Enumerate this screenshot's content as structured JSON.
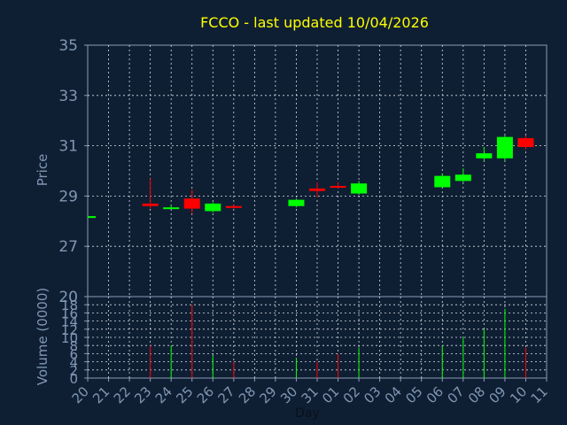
{
  "chart_data": {
    "type": "candlestick",
    "title": "FCCO - last updated 10/04/2026",
    "xlabel": "Day",
    "price_axis": {
      "label": "Price",
      "ylim": [
        25,
        35
      ],
      "ticks": [
        "35",
        "33",
        "31",
        "29",
        "27"
      ],
      "tick_values": [
        35,
        33,
        31,
        29,
        27
      ]
    },
    "volume_axis": {
      "label": "Volume (0000)",
      "ylim": [
        0,
        20
      ],
      "ticks": [
        "20",
        "18",
        "16",
        "14",
        "12",
        "10",
        "8",
        "6",
        "4",
        "2",
        "0"
      ],
      "tick_values": [
        20,
        18,
        16,
        14,
        12,
        10,
        8,
        6,
        4,
        2,
        0
      ]
    },
    "x_ticks": [
      "20",
      "21",
      "22",
      "23",
      "24",
      "25",
      "26",
      "27",
      "28",
      "29",
      "30",
      "31",
      "01",
      "02",
      "03",
      "04",
      "05",
      "06",
      "07",
      "08",
      "09",
      "10",
      "11"
    ],
    "grid": true,
    "colors": {
      "background": "#0f1f33",
      "plot_border": "#8a9bb5",
      "grid": "#d8dde8",
      "title": "#ffff00",
      "axis_text": "#7f97b3",
      "up": "#00ff00",
      "down": "#ff0000"
    },
    "candles": [
      {
        "day": "20",
        "open": 28.2,
        "high": 28.2,
        "low": 28.2,
        "close": 28.2,
        "volume": 0
      },
      {
        "day": "23",
        "open": 28.7,
        "high": 29.7,
        "low": 28.5,
        "close": 28.6,
        "volume": 8
      },
      {
        "day": "24",
        "open": 28.55,
        "high": 28.65,
        "low": 28.5,
        "close": 28.55,
        "volume": 8
      },
      {
        "day": "25",
        "open": 28.9,
        "high": 29.25,
        "low": 28.3,
        "close": 28.5,
        "volume": 18
      },
      {
        "day": "26",
        "open": 28.4,
        "high": 28.75,
        "low": 28.35,
        "close": 28.7,
        "volume": 5.5
      },
      {
        "day": "27",
        "open": 28.6,
        "high": 28.65,
        "low": 28.5,
        "close": 28.55,
        "volume": 4
      },
      {
        "day": "30",
        "open": 28.6,
        "high": 28.9,
        "low": 28.55,
        "close": 28.85,
        "volume": 5
      },
      {
        "day": "31",
        "open": 29.3,
        "high": 29.55,
        "low": 28.95,
        "close": 29.2,
        "volume": 4
      },
      {
        "day": "01",
        "open": 29.4,
        "high": 29.55,
        "low": 29.3,
        "close": 29.35,
        "volume": 6
      },
      {
        "day": "02",
        "open": 29.1,
        "high": 29.6,
        "low": 29.05,
        "close": 29.5,
        "volume": 7.5
      },
      {
        "day": "06",
        "open": 29.35,
        "high": 29.9,
        "low": 29.35,
        "close": 29.8,
        "volume": 8
      },
      {
        "day": "07",
        "open": 29.6,
        "high": 30.1,
        "low": 29.55,
        "close": 29.85,
        "volume": 10
      },
      {
        "day": "08",
        "open": 30.5,
        "high": 30.95,
        "low": 30.4,
        "close": 30.7,
        "volume": 12
      },
      {
        "day": "09",
        "open": 30.5,
        "high": 31.4,
        "low": 30.4,
        "close": 31.35,
        "volume": 17
      },
      {
        "day": "10",
        "open": 31.3,
        "high": 31.4,
        "low": 30.85,
        "close": 30.95,
        "volume": 7.5
      }
    ]
  }
}
